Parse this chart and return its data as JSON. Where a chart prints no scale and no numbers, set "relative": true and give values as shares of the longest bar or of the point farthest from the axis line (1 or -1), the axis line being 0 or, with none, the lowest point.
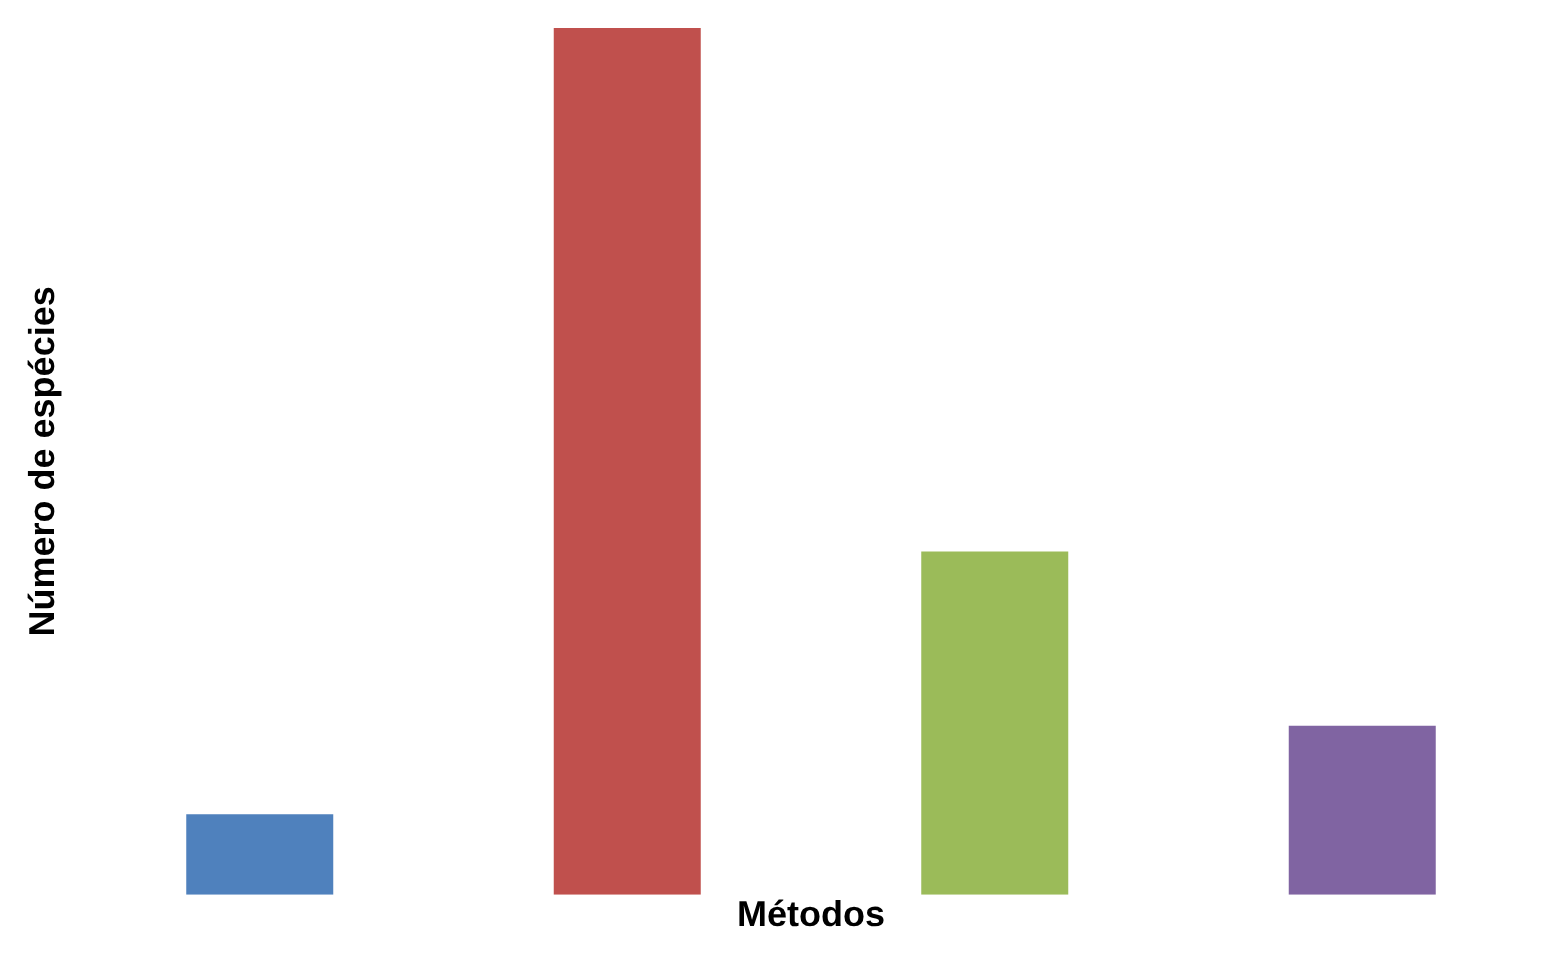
{
  "chart_data": {
    "type": "bar",
    "xlabel": "Métodos",
    "ylabel": "Número de espécies",
    "relative": true,
    "categories": [
      null,
      null,
      null,
      null
    ],
    "values": [
      0.093,
      1,
      0.396,
      0.195
    ],
    "colors": [
      "#4f81bd",
      "#c0504d",
      "#9bbb59",
      "#8064a2"
    ],
    "grid": false,
    "legend": false
  }
}
